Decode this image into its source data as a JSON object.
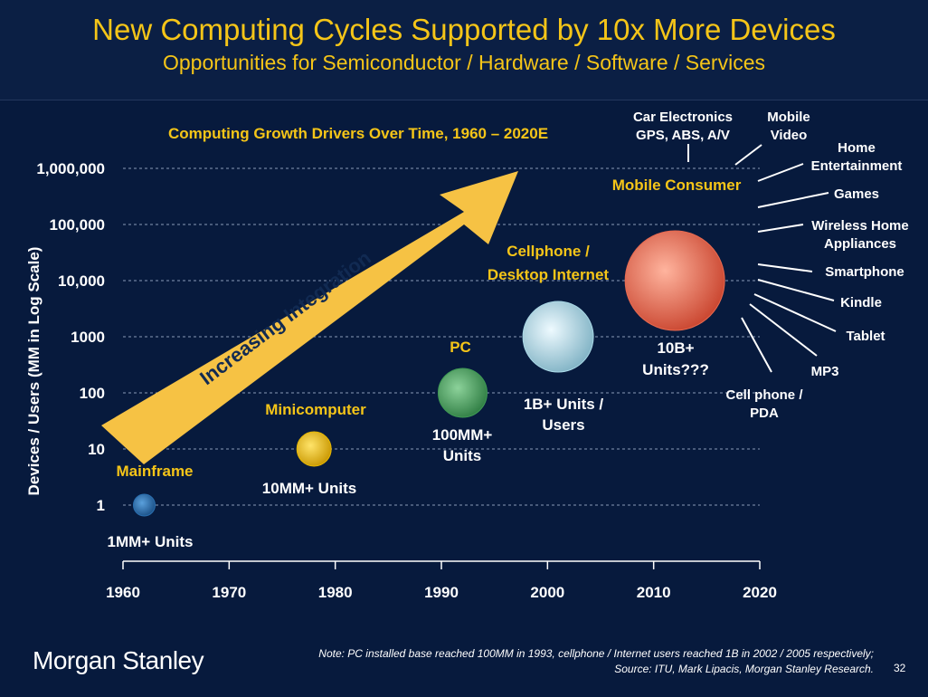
{
  "header": {
    "title": "New Computing Cycles Supported by 10x More Devices",
    "subtitle": "Opportunities for Semiconductor / Hardware / Software / Services"
  },
  "chart_data": {
    "type": "scatter",
    "title": "Computing Growth Drivers Over Time, 1960 – 2020E",
    "xlabel": "",
    "ylabel": "Devices / Users (MM in Log Scale)",
    "x_scale": "linear",
    "y_scale": "log",
    "xlim": [
      1960,
      2020
    ],
    "ylim": [
      1,
      1000000
    ],
    "x_ticks": [
      "1960",
      "1970",
      "1980",
      "1990",
      "2000",
      "2010",
      "2020"
    ],
    "y_ticks": [
      "1",
      "10",
      "100",
      "1000",
      "10,000",
      "100,000",
      "1,000,000"
    ],
    "grid": true,
    "points": [
      {
        "name": "Mainframe",
        "x": 1962,
        "y": 1,
        "units_label": "1MM+ Units",
        "color": "#2a6fb0",
        "size": 1
      },
      {
        "name": "Minicomputer",
        "x": 1978,
        "y": 10,
        "units_label": "10MM+ Units",
        "color": "#e8b800",
        "size": 2
      },
      {
        "name": "PC",
        "x": 1992,
        "y": 100,
        "units_label": "100MM+ Units",
        "color": "#3f9a55",
        "size": 3
      },
      {
        "name": "Cellphone / Desktop Internet",
        "x": 2001,
        "y": 1000,
        "units_label": "1B+ Units / Users",
        "color": "#a9d8e6",
        "size": 4
      },
      {
        "name": "Mobile Consumer",
        "x": 2012,
        "y": 10000,
        "units_label": "10B+ Units???",
        "color": "#e86a50",
        "size": 5
      }
    ],
    "arrow_label": "Increasing Integration",
    "mobile_consumer_devices": [
      "Car Electronics GPS, ABS, A/V",
      "Mobile Video",
      "Home Entertainment",
      "Games",
      "Wireless Home Appliances",
      "Smartphone",
      "Kindle",
      "Tablet",
      "MP3",
      "Cell phone / PDA"
    ]
  },
  "labels": {
    "car_electronics": [
      "Car Electronics",
      "GPS, ABS, A/V"
    ],
    "mobile_video": [
      "Mobile",
      "Video"
    ],
    "home_entertainment": [
      "Home",
      "Entertainment"
    ],
    "games": "Games",
    "wireless_home": [
      "Wireless Home",
      "Appliances"
    ],
    "smartphone": "Smartphone",
    "kindle": "Kindle",
    "tablet": "Tablet",
    "mp3": "MP3",
    "cellphone_pda": [
      "Cell phone /",
      "PDA"
    ],
    "mobile_consumer": "Mobile Consumer",
    "cellphone_internet": [
      "Cellphone /",
      "Desktop Internet"
    ],
    "pc": "PC",
    "minicomputer": "Minicomputer",
    "mainframe": "Mainframe",
    "units_mainframe": "1MM+ Units",
    "units_mini": "10MM+ Units",
    "units_pc": [
      "100MM+",
      "Units"
    ],
    "units_cell": [
      "1B+ Units /",
      "Users"
    ],
    "units_mobile": [
      "10B+",
      "Units???"
    ]
  },
  "footer": {
    "note_line1": "Note: PC installed base reached 100MM in 1993, cellphone / Internet users reached 1B in 2002 / 2005 respectively;",
    "note_line2": "Source: ITU, Mark Lipacis, Morgan Stanley Research.",
    "page_number": "32",
    "logo": "Morgan Stanley"
  },
  "colors": {
    "background": "#071a3d",
    "accent": "#f5c518",
    "text": "#ffffff",
    "arrow": "#f6c244"
  }
}
